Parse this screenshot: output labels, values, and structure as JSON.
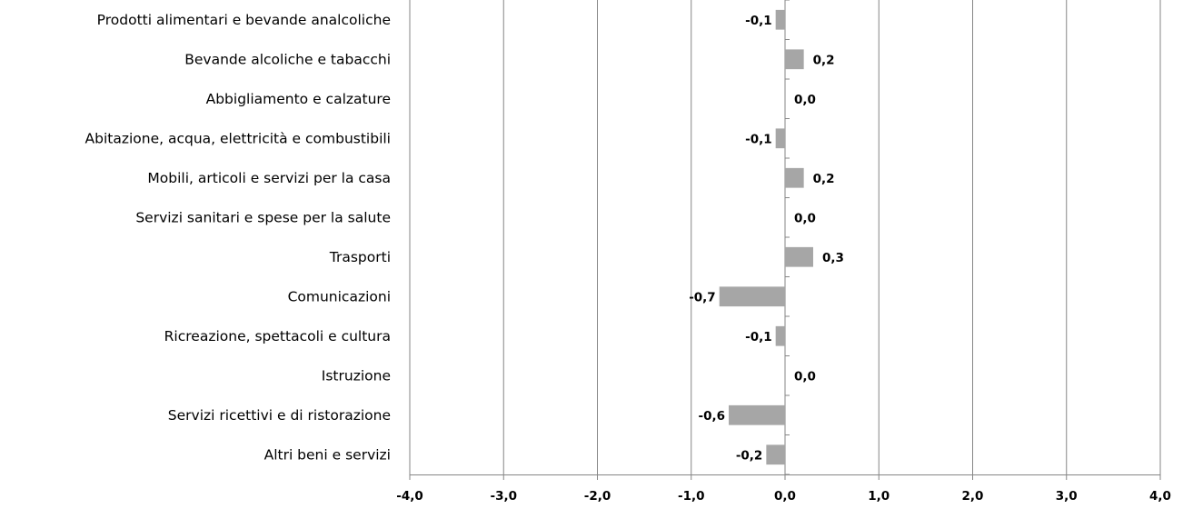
{
  "chart_data": {
    "type": "bar",
    "orientation": "horizontal",
    "categories": [
      "Prodotti alimentari e bevande analcoliche",
      "Bevande alcoliche e tabacchi",
      "Abbigliamento e calzature",
      "Abitazione, acqua, elettricità  e combustibili",
      "Mobili, articoli e servizi per la casa",
      "Servizi sanitari e spese per la salute",
      "Trasporti",
      "Comunicazioni",
      "Ricreazione, spettacoli e cultura",
      "Istruzione",
      "Servizi ricettivi e di ristorazione",
      "Altri beni e servizi"
    ],
    "values": [
      -0.1,
      0.2,
      0.0,
      -0.1,
      0.2,
      0.0,
      0.3,
      -0.7,
      -0.1,
      0.0,
      -0.6,
      -0.2
    ],
    "data_labels": [
      "-0,1",
      "0,2",
      "0,0",
      "-0,1",
      "0,2",
      "0,0",
      "0,3",
      "-0,7",
      "-0,1",
      "0,0",
      "-0,6",
      "-0,2"
    ],
    "xlim": [
      -4.0,
      4.0
    ],
    "x_ticks": [
      -4,
      -3,
      -2,
      -1,
      0,
      1,
      2,
      3,
      4
    ],
    "x_tick_labels": [
      "-4,0",
      "-3,0",
      "-2,0",
      "-1,0",
      "0,0",
      "1,0",
      "2,0",
      "3,0",
      "4,0"
    ],
    "title": "",
    "xlabel": "",
    "ylabel": "",
    "grid": "vertical",
    "legend": "none",
    "bar_color": "#a6a6a6",
    "grid_color": "#868686"
  }
}
